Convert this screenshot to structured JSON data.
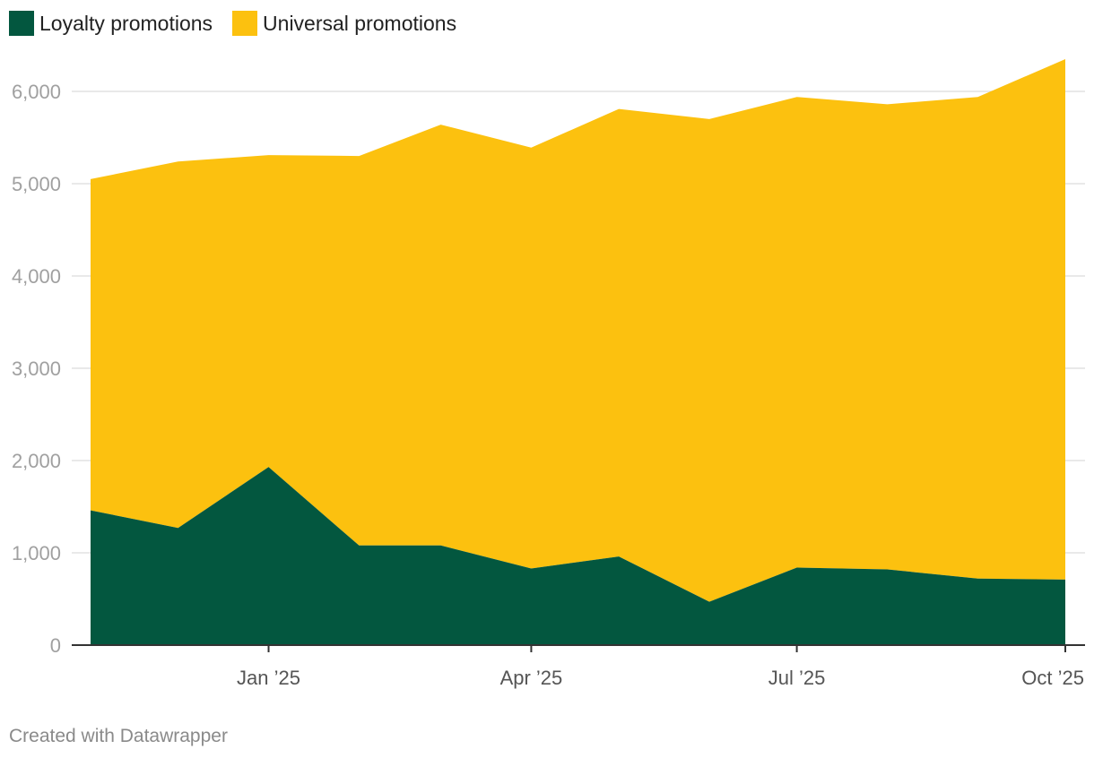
{
  "legend": {
    "loyalty_label": "Loyalty promotions",
    "universal_label": "Universal promotions"
  },
  "footer": {
    "credit": "Created with Datawrapper"
  },
  "colors": {
    "loyalty": "#03573f",
    "universal": "#fcc10f",
    "grid": "#e2e2e2",
    "axis": "#333333"
  },
  "chart_data": {
    "type": "area",
    "stacked": true,
    "x": [
      "2024-11-01",
      "2024-12-01",
      "2025-01-01",
      "2025-02-01",
      "2025-03-01",
      "2025-04-01",
      "2025-05-01",
      "2025-06-01",
      "2025-07-01",
      "2025-08-01",
      "2025-09-01",
      "2025-10-01"
    ],
    "series": [
      {
        "name": "Loyalty promotions",
        "values": [
          1460,
          1270,
          1930,
          1080,
          1080,
          830,
          960,
          470,
          840,
          820,
          720,
          710
        ]
      },
      {
        "name": "Universal promotions",
        "values": [
          3590,
          3970,
          3380,
          4220,
          4560,
          4560,
          4850,
          5230,
          5100,
          5040,
          5220,
          5640
        ]
      }
    ],
    "totals": [
      5050,
      5240,
      5310,
      5300,
      5640,
      5390,
      5810,
      5700,
      5940,
      5860,
      5940,
      6350
    ],
    "ylim": [
      0,
      6000
    ],
    "yticks": [
      0,
      1000,
      2000,
      3000,
      4000,
      5000,
      6000
    ],
    "ytick_labels": [
      "0",
      "1,000",
      "2,000",
      "3,000",
      "4,000",
      "5,000",
      "6,000"
    ],
    "xticks": [
      {
        "date": "2025-01-01",
        "label": "Jan ’25"
      },
      {
        "date": "2025-04-01",
        "label": "Apr ’25"
      },
      {
        "date": "2025-07-01",
        "label": "Jul ’25"
      },
      {
        "date": "2025-10-01",
        "label": "Oct ’25"
      }
    ],
    "grid": true,
    "legend_position": "top-left"
  }
}
